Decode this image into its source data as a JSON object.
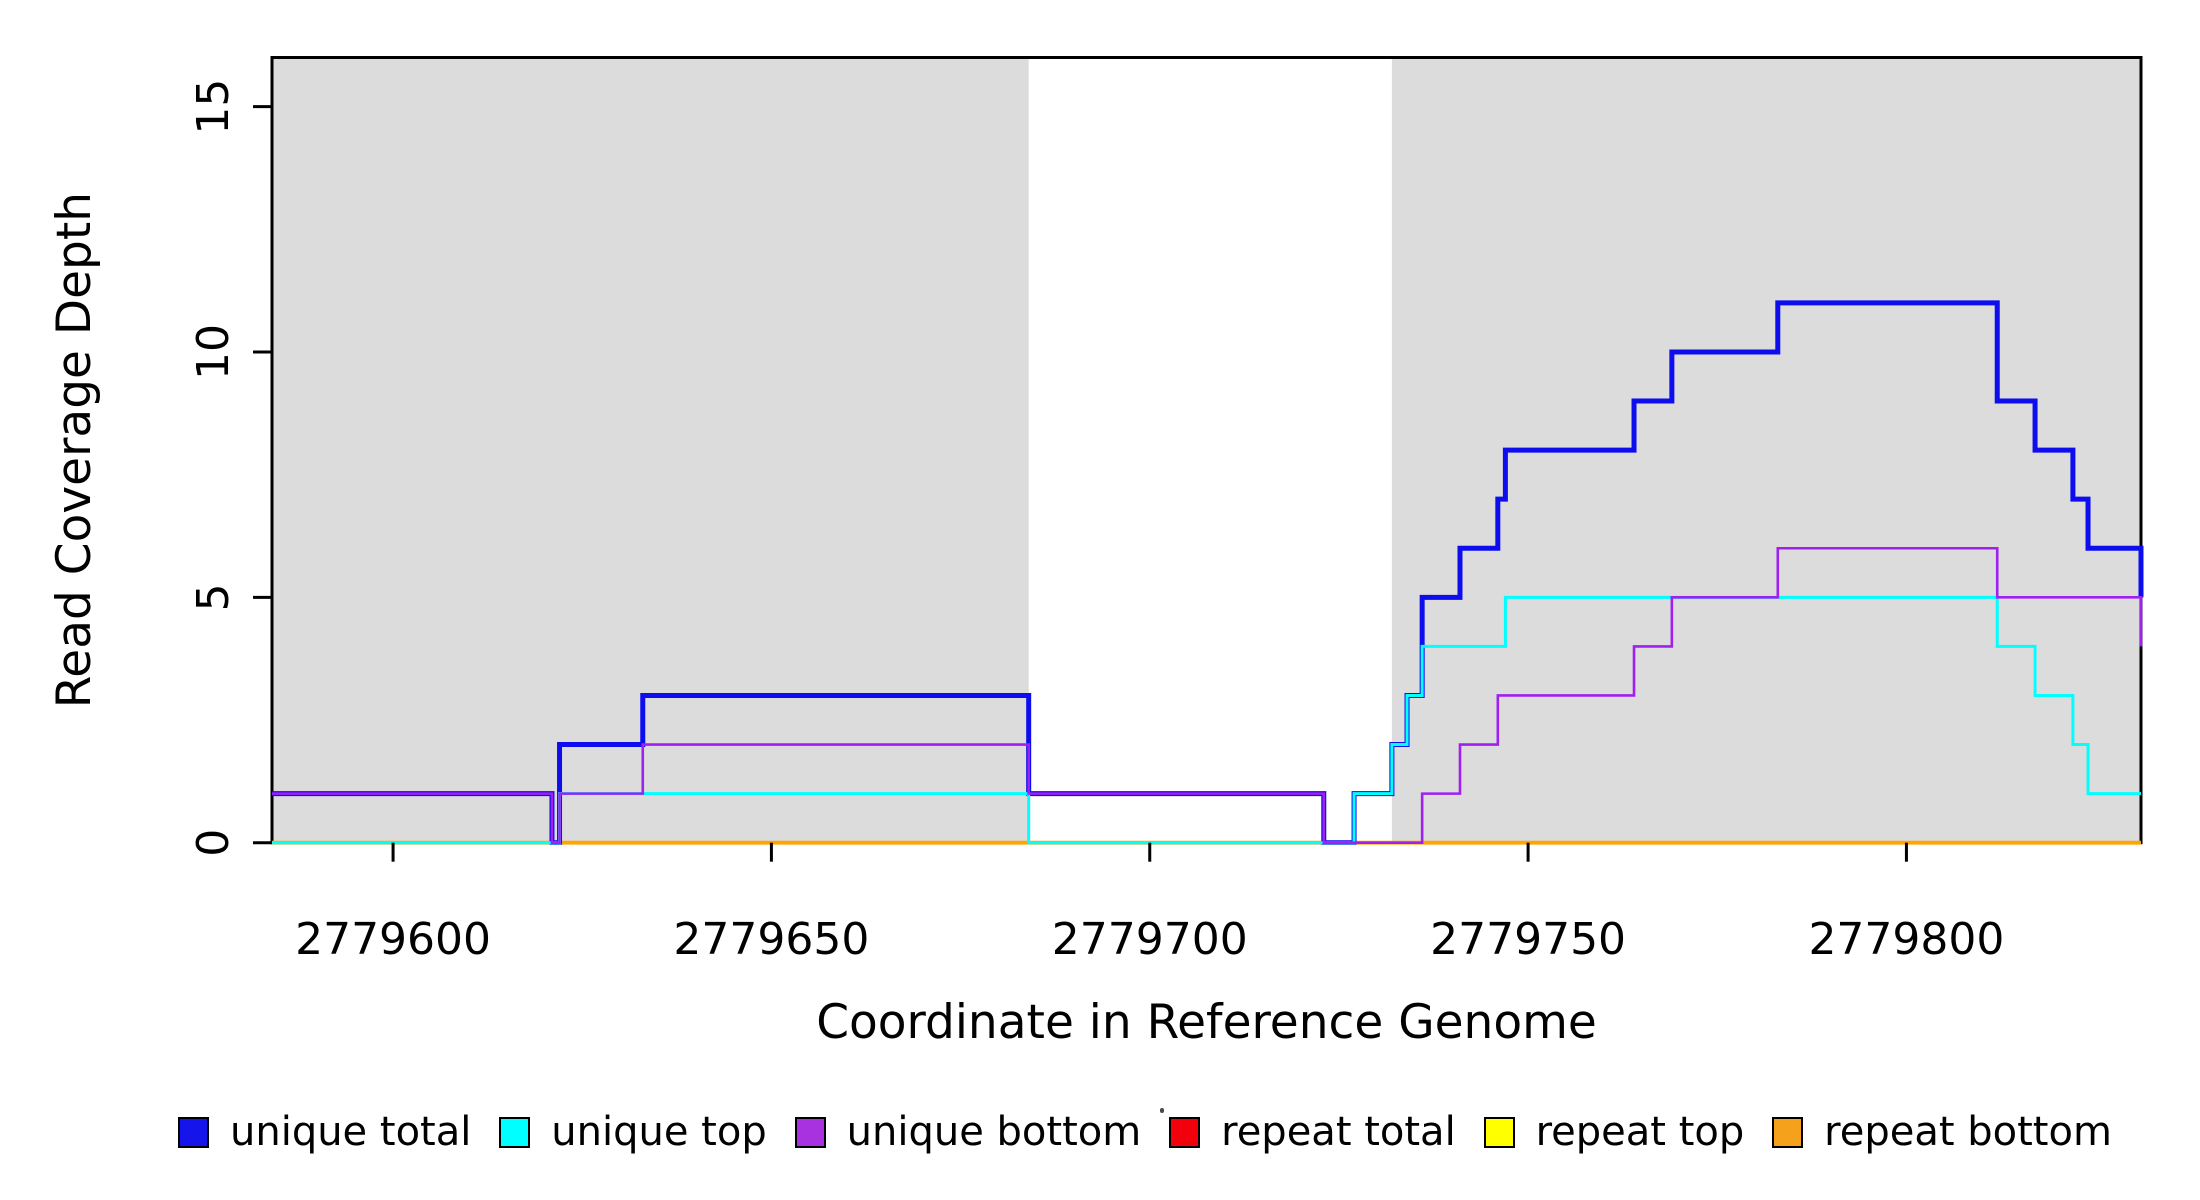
{
  "chart_data": {
    "type": "line",
    "subtype": "step-coverage",
    "title": "",
    "xlabel": "Coordinate in Reference Genome",
    "ylabel": "Read Coverage Depth",
    "xlim": [
      2779584,
      2779831
    ],
    "ylim": [
      0,
      16
    ],
    "x_ticks": [
      2779600,
      2779650,
      2779700,
      2779750,
      2779800
    ],
    "x_tick_labels": [
      "2779600",
      "2779650",
      "2779700",
      "2779750",
      "2779800"
    ],
    "y_ticks": [
      0,
      5,
      10,
      15
    ],
    "y_tick_labels": [
      "0",
      "5",
      "10",
      "15"
    ],
    "grid": false,
    "legend_position": "bottom",
    "plot_background": "#FFFFFF",
    "box_color": "#000000",
    "shaded_regions": [
      {
        "name": "left-gray-region",
        "x0": 2779584,
        "x1": 2779684,
        "color": "#DCDCDC"
      },
      {
        "name": "right-gray-region",
        "x0": 2779732,
        "x1": 2779831,
        "color": "#DCDCDC"
      }
    ],
    "draw_order": [
      "repeat total",
      "repeat top",
      "repeat bottom",
      "unique total",
      "unique top",
      "unique bottom"
    ],
    "series": [
      {
        "name": "unique total",
        "color": "#0D0DEE",
        "line_width": 5,
        "steps": [
          [
            2779584,
            1
          ],
          [
            2779621,
            0
          ],
          [
            2779622,
            2
          ],
          [
            2779633,
            3
          ],
          [
            2779684,
            1
          ],
          [
            2779723,
            0
          ],
          [
            2779727,
            1
          ],
          [
            2779732,
            2
          ],
          [
            2779734,
            3
          ],
          [
            2779736,
            5
          ],
          [
            2779741,
            6
          ],
          [
            2779746,
            7
          ],
          [
            2779747,
            8
          ],
          [
            2779764,
            9
          ],
          [
            2779769,
            10
          ],
          [
            2779783,
            11
          ],
          [
            2779812,
            9
          ],
          [
            2779817,
            8
          ],
          [
            2779822,
            7
          ],
          [
            2779824,
            6
          ],
          [
            2779831,
            5
          ]
        ]
      },
      {
        "name": "unique top",
        "color": "#00FFFF",
        "line_width": 3,
        "steps": [
          [
            2779584,
            0
          ],
          [
            2779622,
            1
          ],
          [
            2779684,
            0
          ],
          [
            2779727,
            1
          ],
          [
            2779732,
            2
          ],
          [
            2779734,
            3
          ],
          [
            2779736,
            4
          ],
          [
            2779747,
            5
          ],
          [
            2779812,
            4
          ],
          [
            2779817,
            3
          ],
          [
            2779822,
            2
          ],
          [
            2779824,
            1
          ]
        ]
      },
      {
        "name": "unique bottom",
        "color": "#A020F0",
        "line_width": 2.6,
        "steps": [
          [
            2779584,
            1
          ],
          [
            2779621,
            0
          ],
          [
            2779622,
            1
          ],
          [
            2779633,
            2
          ],
          [
            2779684,
            1
          ],
          [
            2779723,
            0
          ],
          [
            2779736,
            1
          ],
          [
            2779741,
            2
          ],
          [
            2779746,
            3
          ],
          [
            2779764,
            4
          ],
          [
            2779769,
            5
          ],
          [
            2779783,
            6
          ],
          [
            2779812,
            5
          ],
          [
            2779831,
            4
          ]
        ]
      },
      {
        "name": "repeat total",
        "color": "#FF0000",
        "line_width": 3,
        "steps": [
          [
            2779584,
            0
          ]
        ]
      },
      {
        "name": "repeat top",
        "color": "#FFFF00",
        "line_width": 3,
        "steps": [
          [
            2779584,
            0
          ]
        ]
      },
      {
        "name": "repeat bottom",
        "color": "#FFA500",
        "line_width": 4,
        "steps": [
          [
            2779584,
            0
          ]
        ]
      }
    ]
  },
  "legend": {
    "items": [
      {
        "label": "unique total",
        "color": "#1414EB"
      },
      {
        "label": "unique top",
        "color": "#00FFFF"
      },
      {
        "label": "unique bottom",
        "color": "#A832E0"
      },
      {
        "label": "repeat total",
        "color": "#F2000C"
      },
      {
        "label": "repeat top",
        "color": "#FFFF00"
      },
      {
        "label": "repeat bottom",
        "color": "#F5A11B"
      }
    ]
  }
}
